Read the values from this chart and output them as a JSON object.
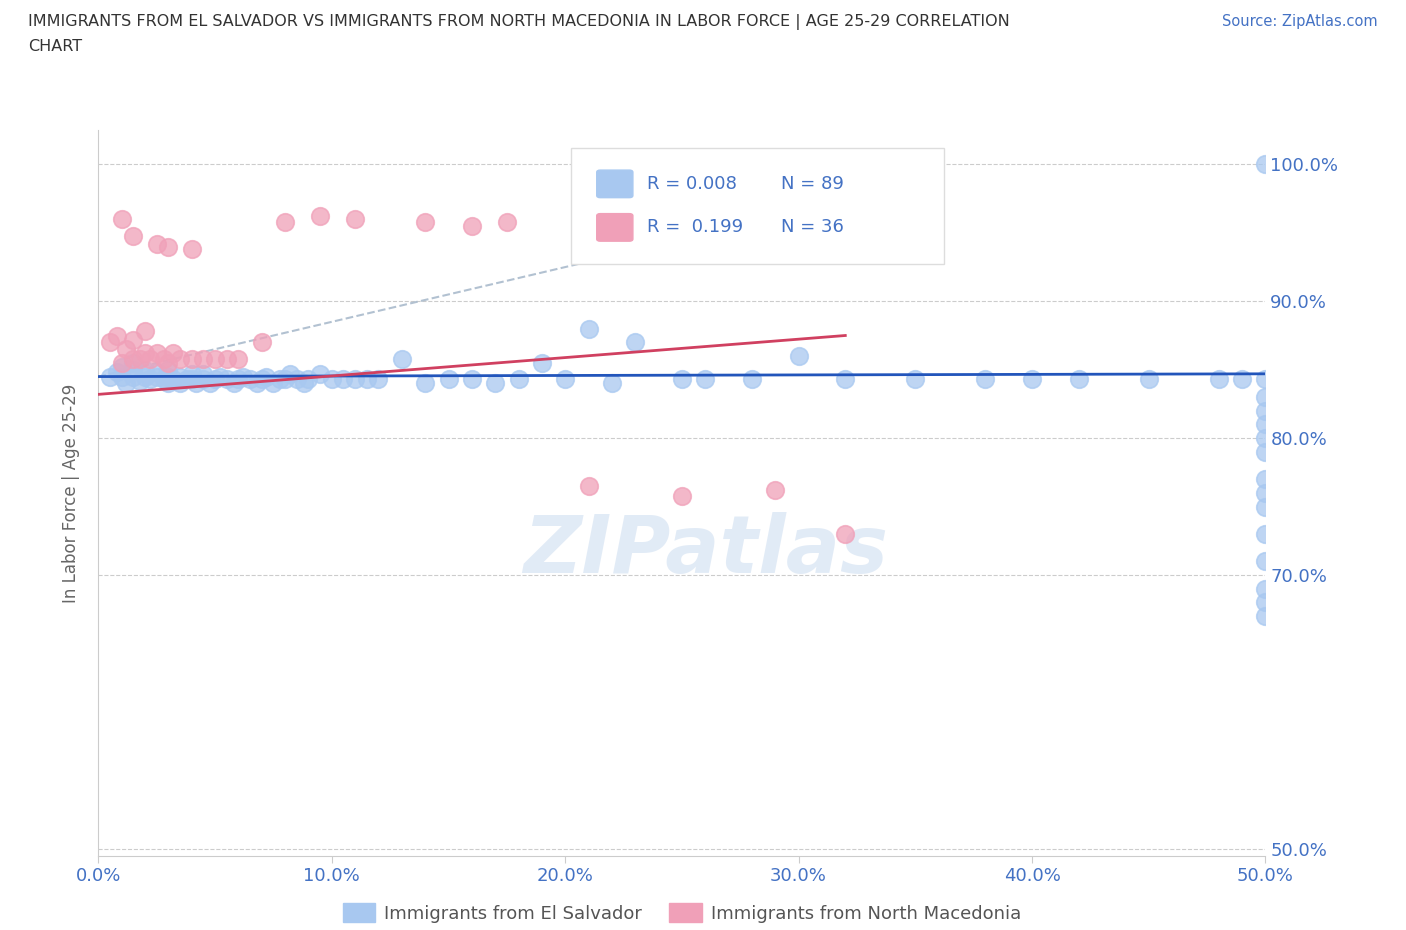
{
  "title_line1": "IMMIGRANTS FROM EL SALVADOR VS IMMIGRANTS FROM NORTH MACEDONIA IN LABOR FORCE | AGE 25-29 CORRELATION",
  "title_line2": "CHART",
  "source": "Source: ZipAtlas.com",
  "ylabel": "In Labor Force | Age 25-29",
  "xlim": [
    0.0,
    0.5
  ],
  "ylim": [
    0.495,
    1.025
  ],
  "yticks": [
    0.5,
    0.7,
    0.8,
    0.9,
    1.0
  ],
  "ytick_labels": [
    "50.0%",
    "70.0%",
    "80.0%",
    "90.0%",
    "100.0%"
  ],
  "xticks": [
    0.0,
    0.1,
    0.2,
    0.3,
    0.4,
    0.5
  ],
  "xtick_labels": [
    "0.0%",
    "10.0%",
    "20.0%",
    "30.0%",
    "40.0%",
    "50.0%"
  ],
  "legend_R_blue": "R = 0.008",
  "legend_N_blue": "N = 89",
  "legend_R_pink": "R =  0.199",
  "legend_N_pink": "N = 36",
  "blue_color": "#A8C8F0",
  "pink_color": "#F0A0B8",
  "trend_blue_color": "#2255BB",
  "trend_pink_color": "#D04060",
  "trend_dash_color": "#AABBCC",
  "watermark": "ZIPatlas",
  "blue_scatter_x": [
    0.005,
    0.008,
    0.01,
    0.01,
    0.012,
    0.015,
    0.015,
    0.015,
    0.018,
    0.02,
    0.02,
    0.022,
    0.025,
    0.025,
    0.028,
    0.03,
    0.03,
    0.03,
    0.032,
    0.035,
    0.035,
    0.038,
    0.04,
    0.04,
    0.042,
    0.045,
    0.045,
    0.048,
    0.05,
    0.052,
    0.055,
    0.058,
    0.06,
    0.062,
    0.065,
    0.068,
    0.07,
    0.072,
    0.075,
    0.078,
    0.08,
    0.082,
    0.085,
    0.088,
    0.09,
    0.095,
    0.1,
    0.105,
    0.11,
    0.115,
    0.12,
    0.13,
    0.14,
    0.15,
    0.16,
    0.17,
    0.18,
    0.19,
    0.2,
    0.21,
    0.22,
    0.23,
    0.25,
    0.26,
    0.28,
    0.3,
    0.32,
    0.35,
    0.38,
    0.4,
    0.42,
    0.45,
    0.48,
    0.49,
    0.5,
    0.5,
    0.5,
    0.5,
    0.5,
    0.5,
    0.5,
    0.5,
    0.5,
    0.5,
    0.5,
    0.5,
    0.5,
    0.5,
    0.5
  ],
  "blue_scatter_y": [
    0.845,
    0.848,
    0.845,
    0.852,
    0.84,
    0.845,
    0.85,
    0.855,
    0.842,
    0.845,
    0.85,
    0.843,
    0.845,
    0.848,
    0.843,
    0.84,
    0.845,
    0.85,
    0.843,
    0.84,
    0.845,
    0.843,
    0.843,
    0.847,
    0.84,
    0.843,
    0.847,
    0.84,
    0.843,
    0.845,
    0.843,
    0.84,
    0.843,
    0.845,
    0.843,
    0.84,
    0.843,
    0.845,
    0.84,
    0.843,
    0.843,
    0.847,
    0.843,
    0.84,
    0.843,
    0.847,
    0.843,
    0.843,
    0.843,
    0.843,
    0.843,
    0.858,
    0.84,
    0.843,
    0.843,
    0.84,
    0.843,
    0.855,
    0.843,
    0.88,
    0.84,
    0.87,
    0.843,
    0.843,
    0.843,
    0.86,
    0.843,
    0.843,
    0.843,
    0.843,
    0.843,
    0.843,
    0.843,
    0.843,
    0.843,
    0.76,
    0.8,
    0.82,
    0.81,
    0.79,
    0.83,
    0.77,
    0.75,
    0.73,
    0.71,
    0.69,
    0.68,
    0.67,
    1.0
  ],
  "pink_scatter_x": [
    0.005,
    0.008,
    0.01,
    0.012,
    0.015,
    0.015,
    0.018,
    0.02,
    0.02,
    0.022,
    0.025,
    0.028,
    0.03,
    0.032,
    0.035,
    0.04,
    0.045,
    0.05,
    0.055,
    0.06,
    0.07,
    0.08,
    0.095,
    0.11,
    0.14,
    0.16,
    0.175,
    0.21,
    0.25,
    0.29,
    0.32,
    0.01,
    0.015,
    0.025,
    0.03,
    0.04
  ],
  "pink_scatter_y": [
    0.87,
    0.875,
    0.855,
    0.865,
    0.858,
    0.872,
    0.858,
    0.862,
    0.878,
    0.858,
    0.862,
    0.858,
    0.855,
    0.862,
    0.858,
    0.858,
    0.858,
    0.858,
    0.858,
    0.858,
    0.87,
    0.958,
    0.962,
    0.96,
    0.958,
    0.955,
    0.958,
    0.765,
    0.758,
    0.762,
    0.73,
    0.96,
    0.948,
    0.942,
    0.94,
    0.938
  ],
  "blue_trend_x": [
    0.0,
    0.5
  ],
  "blue_trend_y": [
    0.845,
    0.847
  ],
  "pink_trend_x": [
    0.0,
    0.32
  ],
  "pink_trend_y": [
    0.832,
    0.875
  ],
  "dash_trend_x": [
    0.0,
    0.3
  ],
  "dash_trend_y": [
    0.845,
    0.965
  ]
}
